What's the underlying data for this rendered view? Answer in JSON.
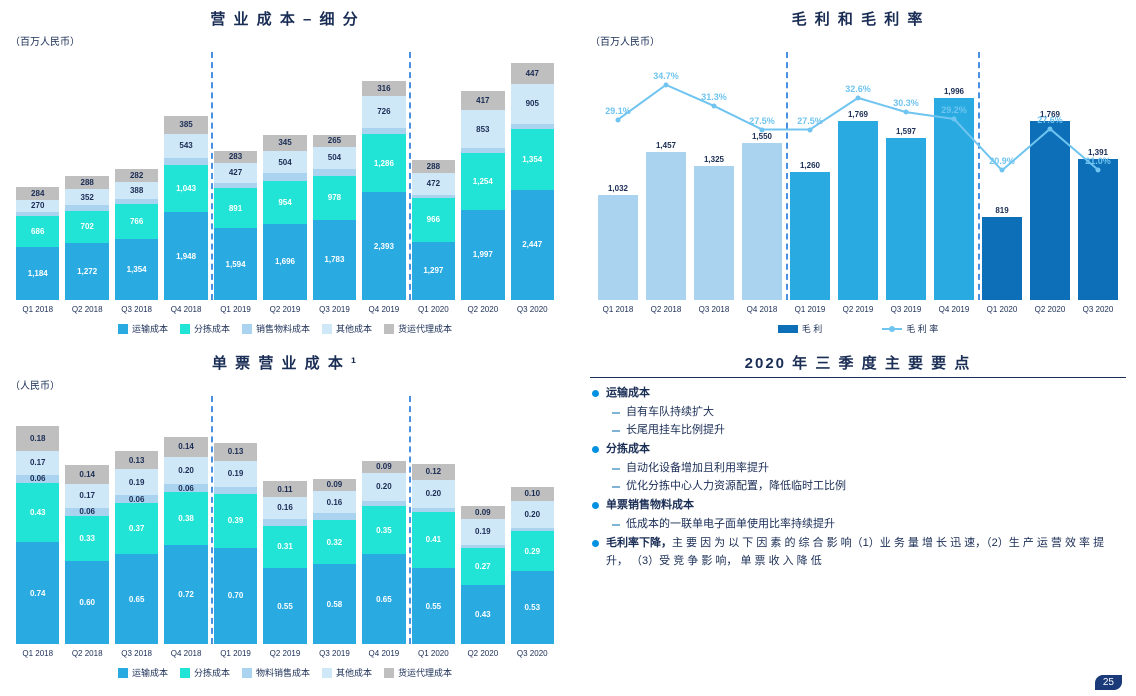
{
  "colors": {
    "transport": "#29abe2",
    "sorting": "#21e3d6",
    "material": "#a9d3ef",
    "other": "#cfe8f7",
    "freight": "#bfbfbf",
    "text": "#1a2d55",
    "barDarkBlue": "#0d6fb8",
    "barLightBlue": "#a9d3ef",
    "linePt": "#6fc4f0"
  },
  "chart1": {
    "title": "营 业 成 本 – 细 分",
    "unit": "（百万人民币）",
    "categories": [
      "Q1 2018",
      "Q2 2018",
      "Q3 2018",
      "Q4 2018",
      "Q1 2019",
      "Q2 2019",
      "Q3 2019",
      "Q4 2019",
      "Q1 2020",
      "Q2 2020",
      "Q3 2020"
    ],
    "series": [
      {
        "name": "运输成本",
        "color": "#29abe2",
        "vals": [
          1184,
          1272,
          1354,
          1948,
          1594,
          1696,
          1783,
          2393,
          1297,
          1997,
          2447
        ]
      },
      {
        "name": "分拣成本",
        "color": "#21e3d6",
        "vals": [
          686,
          702,
          766,
          1043,
          891,
          954,
          978,
          1286,
          966,
          1254,
          1354
        ]
      },
      {
        "name": "销售物料成本",
        "color": "#a9d3ef",
        "vals": [
          89,
          126,
          119,
          158,
          120,
          156,
          138,
          130,
          74,
          112,
          95
        ]
      },
      {
        "name": "其他成本",
        "color": "#cfe8f7",
        "vals": [
          270,
          352,
          388,
          543,
          427,
          504,
          504,
          726,
          472,
          853,
          905
        ]
      },
      {
        "name": "货运代理成本",
        "color": "#bfbfbf",
        "vals": [
          284,
          288,
          282,
          385,
          283,
          345,
          265,
          316,
          288,
          417,
          447
        ]
      }
    ],
    "ymax": 5500,
    "dividers": [
      4,
      8
    ]
  },
  "chart2": {
    "title": "毛 利 和 毛 利 率",
    "unit": "（百万人民币）",
    "categories": [
      "Q1 2018",
      "Q2 2018",
      "Q3 2018",
      "Q4 2018",
      "Q1 2019",
      "Q2 2019",
      "Q3 2019",
      "Q4 2019",
      "Q1 2020",
      "Q2 2020",
      "Q3 2020"
    ],
    "bars": [
      1032,
      1457,
      1325,
      1550,
      1260,
      1769,
      1597,
      1996,
      819,
      1769,
      1391
    ],
    "barColors": [
      "#a9d3ef",
      "#a9d3ef",
      "#a9d3ef",
      "#a9d3ef",
      "#29abe2",
      "#29abe2",
      "#29abe2",
      "#29abe2",
      "#0d6fb8",
      "#0d6fb8",
      "#0d6fb8"
    ],
    "ymax": 2200,
    "line": [
      29.1,
      34.7,
      31.3,
      27.5,
      27.5,
      32.6,
      30.3,
      29.2,
      20.9,
      27.6,
      21.0
    ],
    "lineMax": 40,
    "legendBar": "毛 利",
    "legendLine": "毛 利 率",
    "dividers": [
      4,
      8
    ]
  },
  "chart3": {
    "title": "单 票 营 业 成 本 ¹",
    "unit": "（人民币）",
    "categories": [
      "Q1 2018",
      "Q2 2018",
      "Q3 2018",
      "Q4 2018",
      "Q1 2019",
      "Q2 2019",
      "Q3 2019",
      "Q4 2019",
      "Q1 2020",
      "Q2 2020",
      "Q3 2020"
    ],
    "series": [
      {
        "name": "运输成本",
        "color": "#29abe2",
        "vals": [
          0.74,
          0.6,
          0.65,
          0.72,
          0.7,
          0.55,
          0.58,
          0.65,
          0.55,
          0.43,
          0.53
        ]
      },
      {
        "name": "分拣成本",
        "color": "#21e3d6",
        "vals": [
          0.43,
          0.33,
          0.37,
          0.38,
          0.39,
          0.31,
          0.32,
          0.35,
          0.41,
          0.27,
          0.29
        ]
      },
      {
        "name": "物料销售成本",
        "color": "#a9d3ef",
        "vals": [
          0.06,
          0.06,
          0.06,
          0.06,
          0.05,
          0.05,
          0.05,
          0.04,
          0.03,
          0.02,
          0.02
        ]
      },
      {
        "name": "其他成本",
        "color": "#cfe8f7",
        "vals": [
          0.17,
          0.17,
          0.19,
          0.2,
          0.19,
          0.16,
          0.16,
          0.2,
          0.2,
          0.19,
          0.2
        ]
      },
      {
        "name": "货运代理成本",
        "color": "#bfbfbf",
        "vals": [
          0.18,
          0.14,
          0.13,
          0.14,
          0.13,
          0.11,
          0.09,
          0.09,
          0.12,
          0.09,
          0.1
        ]
      }
    ],
    "ymax": 1.8,
    "dividers": [
      4,
      8
    ]
  },
  "panel4": {
    "title": "2020 年 三 季 度 主 要 要 点",
    "items": [
      {
        "h": "运输成本",
        "subs": [
          "自有车队持续扩大",
          "长尾甩挂车比例提升"
        ]
      },
      {
        "h": "分拣成本",
        "subs": [
          "自动化设备增加且利用率提升",
          "优化分拣中心人力资源配置，降低临时工比例"
        ]
      },
      {
        "h": "单票销售物料成本",
        "subs": [
          "低成本的一联单电子面单使用比率持续提升"
        ]
      },
      {
        "h": "毛利率下降，",
        "tail": "主 要 因 为 以 下 因 素 的 综 合 影 响（1）业 务 量 增 长 迅 速，（2）生 产 运 营 效 率 提 升， （3）受 竞 争 影 响， 单 票 收 入 降 低"
      }
    ]
  },
  "pageNum": "25"
}
